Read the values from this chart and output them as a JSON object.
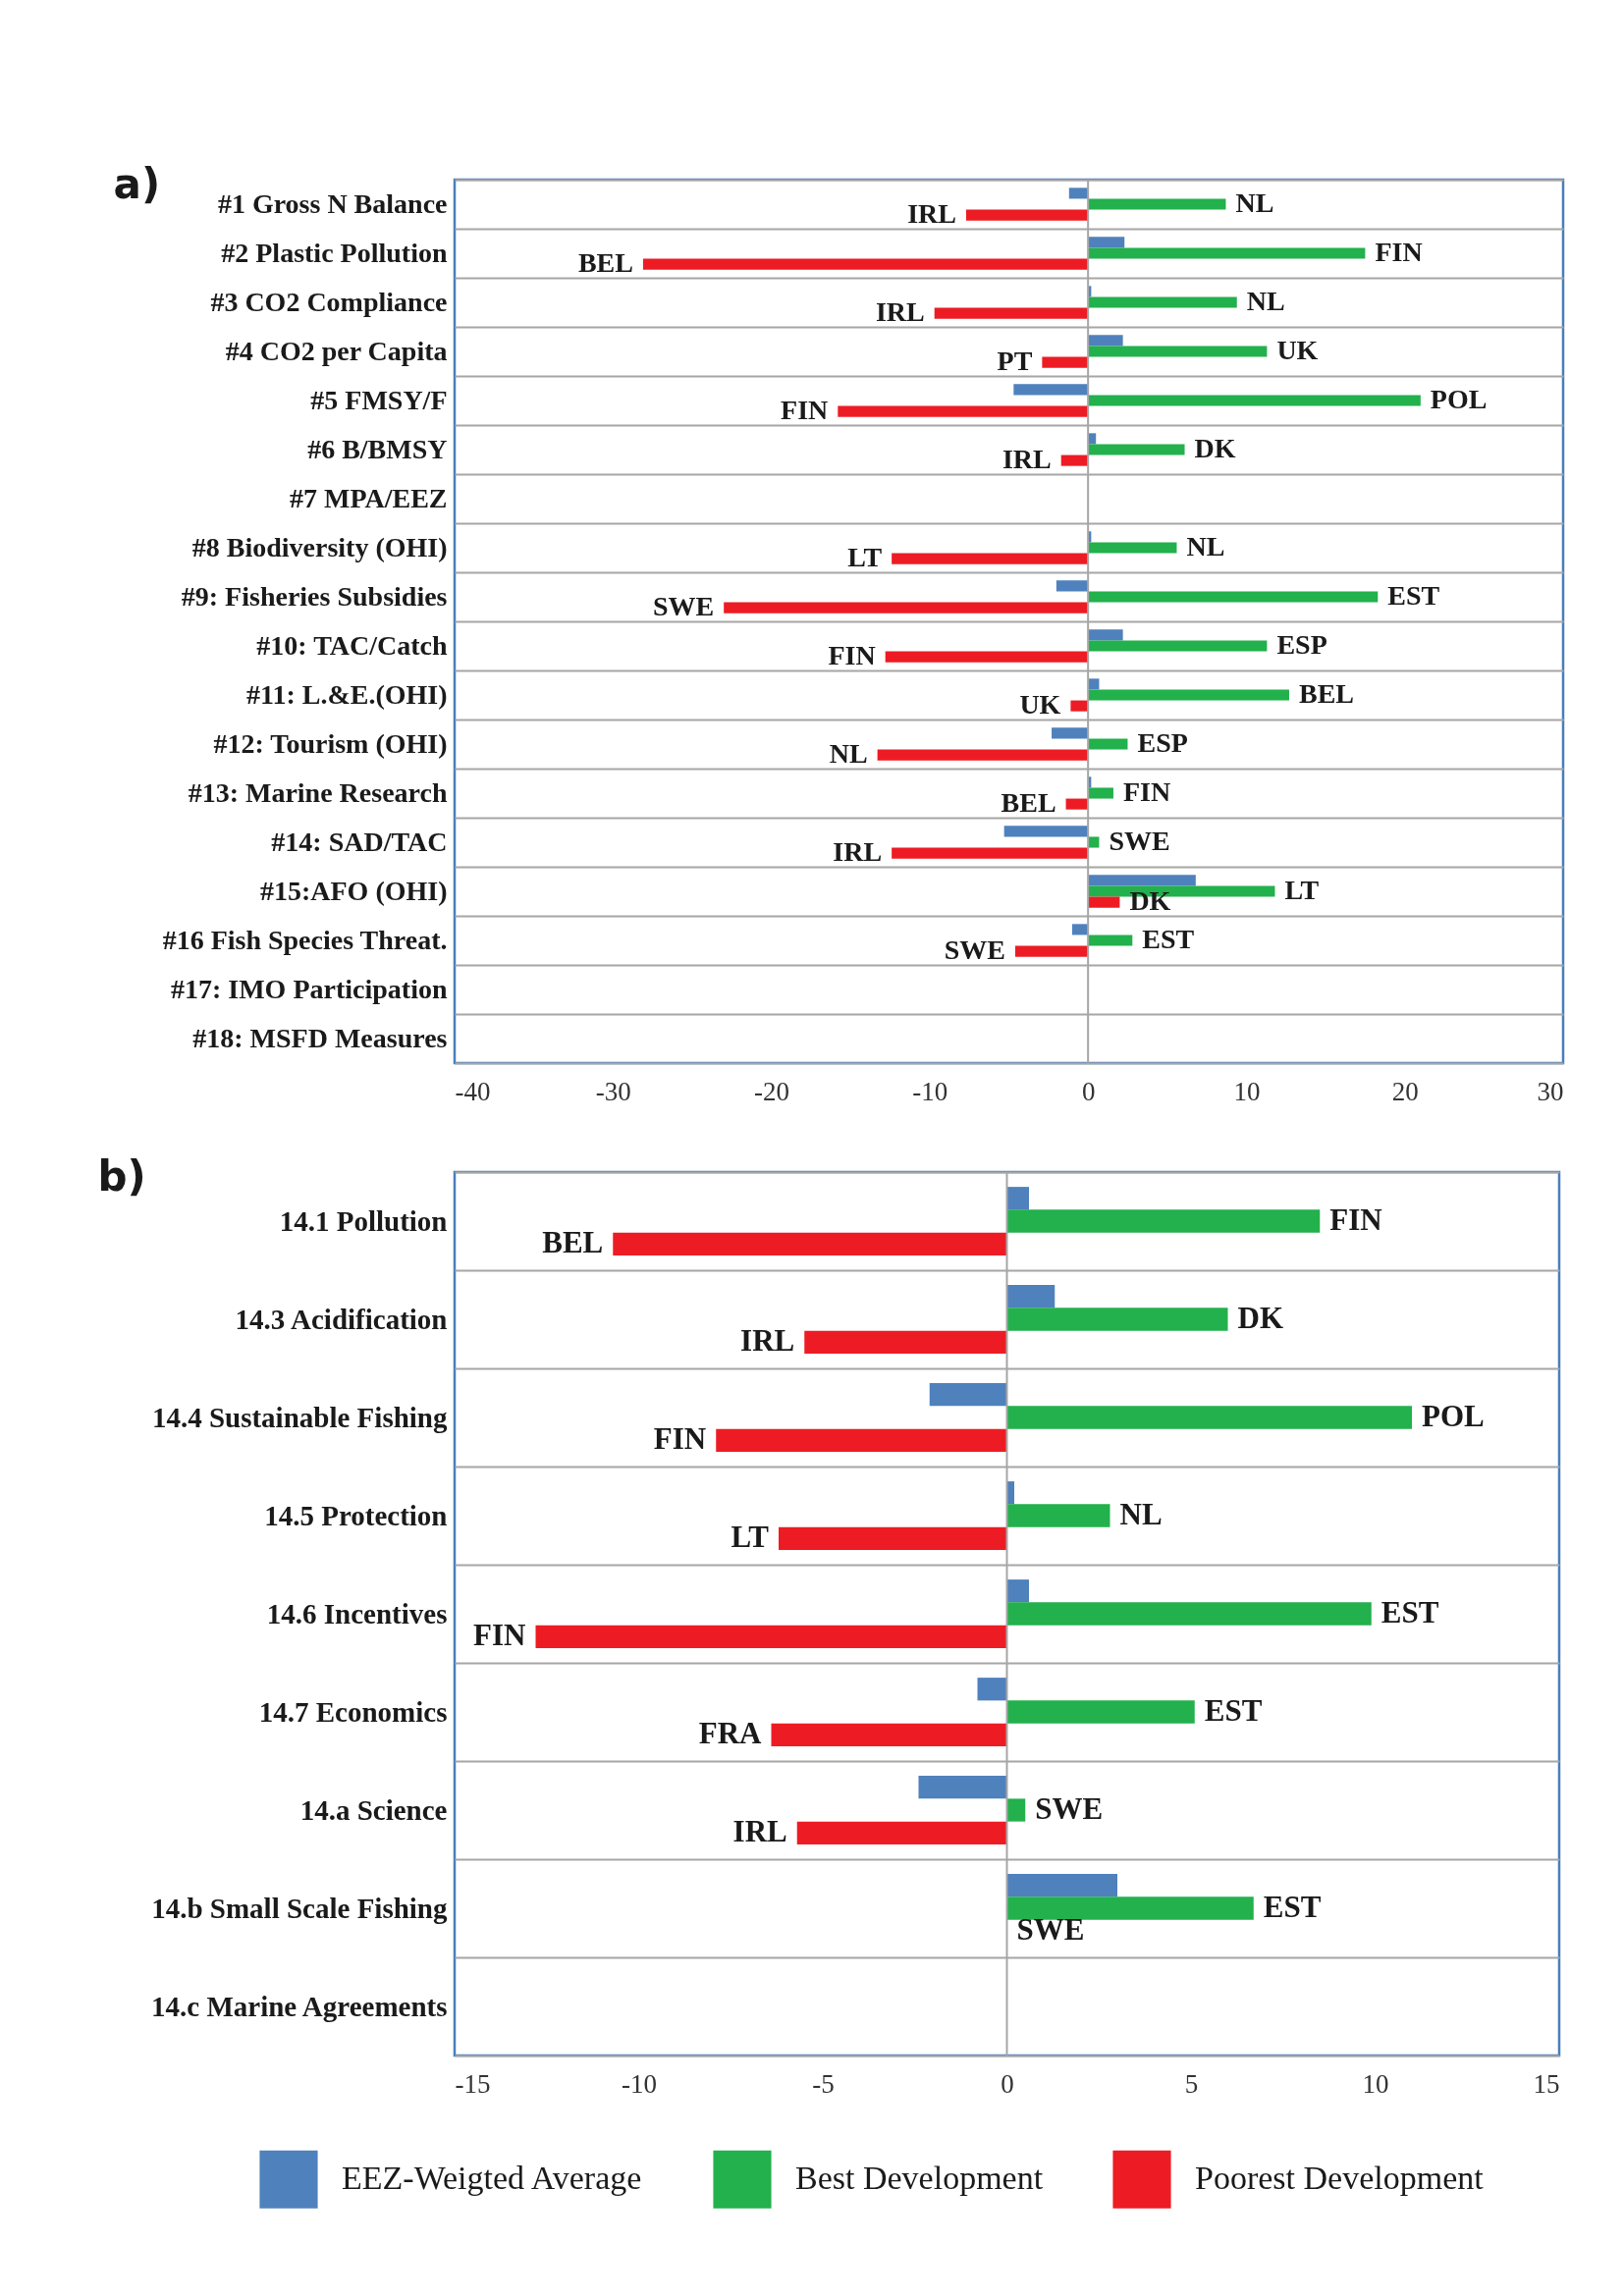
{
  "chart_data": [
    {
      "type": "bar",
      "orientation": "horizontal",
      "title": "a)",
      "categories": [
        "#1 Gross N Balance",
        "#2 Plastic Pollution",
        "#3 CO2 Compliance",
        "#4 CO2 per Capita",
        "#5 FMSY/F",
        "#6 B/BMSY",
        "#7 MPA/EEZ",
        "#8 Biodiversity (OHI)",
        "#9: Fisheries Subsidies",
        "#10: TAC/Catch",
        "#11: L.&E.(OHI)",
        "#12: Tourism (OHI)",
        "#13: Marine Research",
        "#14: SAD/TAC",
        "#15:AFO (OHI)",
        "#16 Fish Species Threat.",
        "#17: IMO Participation",
        "#18: MSFD Measures"
      ],
      "series": [
        {
          "color": "#4f81bd",
          "values": [
            -1.2,
            2.3,
            0.2,
            2.2,
            -4.7,
            0.5,
            null,
            0.2,
            -2.0,
            2.2,
            0.7,
            -2.3,
            0.2,
            -5.3,
            6.8,
            -1.0,
            null,
            null
          ]
        },
        {
          "color": "#22b14c",
          "values": [
            8.7,
            17.5,
            9.4,
            11.3,
            21.0,
            6.1,
            null,
            5.6,
            18.3,
            11.3,
            12.7,
            2.5,
            1.6,
            0.7,
            11.8,
            2.8,
            null,
            null
          ],
          "value_labels": [
            "NL",
            "FIN",
            "NL",
            "UK",
            "POL",
            "DK",
            null,
            "NL",
            "EST",
            "ESP",
            "BEL",
            "ESP",
            "FIN",
            "SWE",
            "LT",
            "EST",
            null,
            null
          ]
        },
        {
          "color": "#ed1c24",
          "values": [
            -7.7,
            -28.1,
            -9.7,
            -2.9,
            -15.8,
            -1.7,
            null,
            -12.4,
            -23.0,
            -12.8,
            -1.1,
            -13.3,
            -1.4,
            -12.4,
            2.0,
            -4.6,
            null,
            null
          ],
          "value_labels": [
            "IRL",
            "BEL",
            "IRL",
            "PT",
            "FIN",
            "IRL",
            null,
            "LT",
            "SWE",
            "FIN",
            "UK",
            "NL",
            "BEL",
            "IRL",
            "DK",
            "SWE",
            null,
            null
          ]
        }
      ],
      "xlim": [
        -40,
        30
      ],
      "xticks": [
        -40,
        -30,
        -20,
        -10,
        0,
        10,
        20,
        30
      ],
      "grid": "y",
      "ref_lines": [
        {
          "axis": "x",
          "value": 0,
          "color": "#a6a6a6"
        }
      ]
    },
    {
      "type": "bar",
      "orientation": "horizontal",
      "title": "b)",
      "categories": [
        "14.1 Pollution",
        "14.3 Acidification",
        "14.4 Sustainable Fishing",
        "14.5 Protection",
        "14.6 Incentives",
        "14.7 Economics",
        "14.a Science",
        "14.b Small Scale Fishing",
        "14.c Marine Agreements"
      ],
      "series": [
        {
          "name": "EEZ-Weigted Average",
          "color": "#4f81bd",
          "values": [
            0.6,
            1.3,
            -2.1,
            0.2,
            0.6,
            -0.8,
            -2.4,
            3.0,
            null
          ]
        },
        {
          "name": "Best Development",
          "color": "#22b14c",
          "values": [
            8.5,
            6.0,
            11.0,
            2.8,
            9.9,
            5.1,
            0.5,
            6.7,
            null
          ],
          "value_labels": [
            "FIN",
            "DK",
            "POL",
            "NL",
            "EST",
            "EST",
            "SWE",
            "EST",
            null
          ]
        },
        {
          "name": "Poorest Development",
          "color": "#ed1c24",
          "values": [
            -10.7,
            -5.5,
            -7.9,
            -6.2,
            -12.8,
            -6.4,
            -5.7,
            0,
            null
          ],
          "value_labels": [
            "BEL",
            "IRL",
            "FIN",
            "LT",
            "FIN",
            "FRA",
            "IRL",
            "SWE",
            null
          ]
        }
      ],
      "xlim": [
        -15,
        15
      ],
      "xticks": [
        -15,
        -10,
        -5,
        0,
        5,
        10,
        15
      ],
      "grid": "y",
      "legend": "bottom",
      "ref_lines": [
        {
          "axis": "x",
          "value": 0,
          "color": "#a6a6a6"
        }
      ]
    }
  ]
}
